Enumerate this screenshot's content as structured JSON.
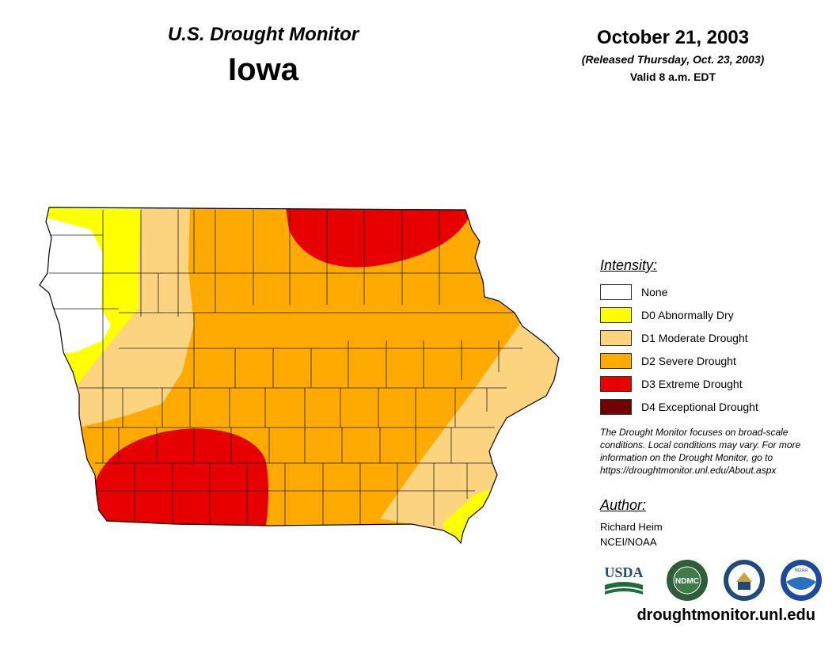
{
  "header": {
    "title": "U.S. Drought Monitor",
    "state": "Iowa",
    "date": "October 21, 2003",
    "released": "(Released Thursday, Oct. 23, 2003)",
    "valid": "Valid 8 a.m. EDT"
  },
  "legend": {
    "title": "Intensity:",
    "items": [
      {
        "label": "None",
        "color": "#ffffff"
      },
      {
        "label": "D0 Abnormally Dry",
        "color": "#ffff00"
      },
      {
        "label": "D1 Moderate Drought",
        "color": "#fcd37f"
      },
      {
        "label": "D2 Severe Drought",
        "color": "#ffaa00"
      },
      {
        "label": "D3 Extreme Drought",
        "color": "#e60000"
      },
      {
        "label": "D4 Exceptional Drought",
        "color": "#730000"
      }
    ]
  },
  "note": "The Drought Monitor focuses on broad-scale conditions. Local conditions may vary. For more information on the Drought Monitor, go to https://droughtmonitor.unl.edu/About.aspx",
  "author": {
    "title": "Author:",
    "name": "Richard Heim",
    "org": "NCEI/NOAA"
  },
  "logos": [
    {
      "name": "usda-logo",
      "text": "USDA"
    },
    {
      "name": "ndmc-logo",
      "text": "NDMC"
    },
    {
      "name": "doc-logo",
      "text": ""
    },
    {
      "name": "noaa-logo",
      "text": "NOAA"
    }
  ],
  "footer": {
    "url": "droughtmonitor.unl.edu"
  }
}
